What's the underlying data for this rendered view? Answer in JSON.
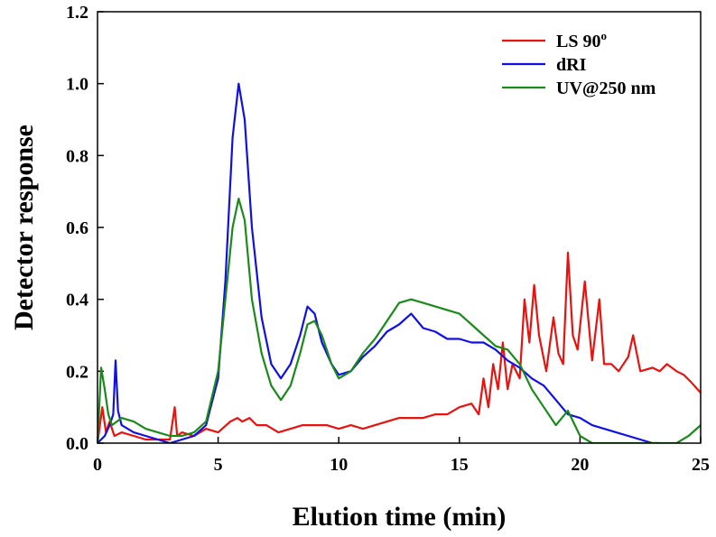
{
  "chart_data": {
    "type": "line",
    "title": "",
    "xlabel": "Elution time (min)",
    "ylabel": "Detector response",
    "xlim": [
      0,
      25
    ],
    "ylim": [
      0,
      1.2
    ],
    "xticks": [
      0,
      5,
      10,
      15,
      20,
      25
    ],
    "xtick_labels": [
      "0",
      "5",
      "10",
      "15",
      "20",
      "25"
    ],
    "yticks": [
      0.0,
      0.2,
      0.4,
      0.6,
      0.8,
      1.0,
      1.2
    ],
    "ytick_labels": [
      "0.0",
      "0.2",
      "0.4",
      "0.6",
      "0.8",
      "1.0",
      "1.2"
    ],
    "grid": false,
    "legend_position": "top-right",
    "series": [
      {
        "name": "LS 90",
        "name_sup": "o",
        "color": "#e8120f",
        "x": [
          0,
          0.2,
          0.35,
          0.5,
          0.7,
          1.0,
          1.5,
          2.0,
          2.5,
          3.0,
          3.2,
          3.3,
          3.5,
          4.0,
          4.5,
          5.0,
          5.5,
          5.8,
          6.0,
          6.3,
          6.6,
          7.0,
          7.5,
          8.0,
          8.5,
          9.0,
          9.5,
          10.0,
          10.5,
          11.0,
          11.5,
          12.0,
          12.5,
          13.0,
          13.5,
          14.0,
          14.5,
          15.0,
          15.5,
          15.8,
          16.0,
          16.2,
          16.4,
          16.6,
          16.8,
          17.0,
          17.2,
          17.5,
          17.7,
          17.9,
          18.1,
          18.3,
          18.6,
          18.9,
          19.1,
          19.3,
          19.5,
          19.7,
          19.9,
          20.2,
          20.5,
          20.8,
          21.0,
          21.3,
          21.6,
          22.0,
          22.2,
          22.5,
          23.0,
          23.3,
          23.6,
          24.0,
          24.3,
          24.6,
          25.0
        ],
        "y": [
          0.0,
          0.1,
          0.03,
          0.06,
          0.02,
          0.03,
          0.02,
          0.01,
          0.01,
          0.01,
          0.1,
          0.02,
          0.03,
          0.02,
          0.04,
          0.03,
          0.06,
          0.07,
          0.06,
          0.07,
          0.05,
          0.05,
          0.03,
          0.04,
          0.05,
          0.05,
          0.05,
          0.04,
          0.05,
          0.04,
          0.05,
          0.06,
          0.07,
          0.07,
          0.07,
          0.08,
          0.08,
          0.1,
          0.11,
          0.08,
          0.18,
          0.1,
          0.22,
          0.15,
          0.28,
          0.15,
          0.22,
          0.18,
          0.4,
          0.28,
          0.44,
          0.3,
          0.2,
          0.35,
          0.25,
          0.22,
          0.53,
          0.3,
          0.26,
          0.45,
          0.23,
          0.4,
          0.22,
          0.22,
          0.2,
          0.24,
          0.3,
          0.2,
          0.21,
          0.2,
          0.22,
          0.2,
          0.19,
          0.17,
          0.14
        ]
      },
      {
        "name": "dRI",
        "name_sup": "",
        "color": "#1010e6",
        "x": [
          0,
          0.3,
          0.5,
          0.65,
          0.75,
          0.85,
          1.0,
          1.5,
          2.0,
          2.5,
          3.0,
          3.5,
          4.0,
          4.5,
          5.0,
          5.3,
          5.6,
          5.85,
          6.1,
          6.4,
          6.8,
          7.2,
          7.6,
          8.0,
          8.4,
          8.7,
          9.0,
          9.3,
          9.7,
          10.0,
          10.5,
          11.0,
          11.5,
          12.0,
          12.5,
          13.0,
          13.5,
          14.0,
          14.5,
          15.0,
          15.5,
          16.0,
          16.5,
          17.0,
          17.5,
          18.0,
          18.5,
          19.0,
          19.5,
          20.0,
          20.5,
          21.0,
          21.5,
          22.0,
          22.5,
          23.0,
          23.3
        ],
        "y": [
          0.0,
          0.02,
          0.05,
          0.08,
          0.23,
          0.09,
          0.05,
          0.03,
          0.02,
          0.01,
          0.0,
          0.01,
          0.02,
          0.05,
          0.18,
          0.45,
          0.85,
          1.0,
          0.9,
          0.6,
          0.35,
          0.22,
          0.18,
          0.22,
          0.3,
          0.38,
          0.36,
          0.28,
          0.22,
          0.19,
          0.2,
          0.24,
          0.27,
          0.31,
          0.33,
          0.36,
          0.32,
          0.31,
          0.29,
          0.29,
          0.28,
          0.28,
          0.26,
          0.23,
          0.21,
          0.18,
          0.16,
          0.12,
          0.08,
          0.07,
          0.05,
          0.04,
          0.03,
          0.02,
          0.01,
          0.0,
          0.0
        ]
      },
      {
        "name": "UV@250 nm",
        "name_sup": "",
        "color": "#1a8a1a",
        "x": [
          0,
          0.15,
          0.3,
          0.45,
          0.6,
          1.0,
          1.5,
          2.0,
          2.5,
          3.0,
          3.5,
          4.0,
          4.5,
          5.0,
          5.3,
          5.6,
          5.85,
          6.1,
          6.4,
          6.8,
          7.2,
          7.6,
          8.0,
          8.4,
          8.7,
          9.0,
          9.3,
          9.7,
          10.0,
          10.5,
          11.0,
          11.5,
          12.0,
          12.5,
          13.0,
          13.5,
          14.0,
          14.5,
          15.0,
          15.5,
          16.0,
          16.5,
          17.0,
          17.5,
          18.0,
          18.5,
          19.0,
          19.5,
          20.0,
          20.5,
          21.0,
          22.0,
          23.0,
          24.0,
          24.5,
          25.0
        ],
        "y": [
          0.0,
          0.21,
          0.15,
          0.08,
          0.05,
          0.07,
          0.06,
          0.04,
          0.03,
          0.02,
          0.02,
          0.03,
          0.06,
          0.2,
          0.4,
          0.6,
          0.68,
          0.62,
          0.4,
          0.25,
          0.16,
          0.12,
          0.16,
          0.25,
          0.33,
          0.34,
          0.3,
          0.22,
          0.18,
          0.2,
          0.25,
          0.29,
          0.34,
          0.39,
          0.4,
          0.39,
          0.38,
          0.37,
          0.36,
          0.33,
          0.3,
          0.27,
          0.26,
          0.22,
          0.15,
          0.1,
          0.05,
          0.09,
          0.02,
          0.0,
          0.0,
          0.0,
          0.0,
          0.0,
          0.02,
          0.05
        ]
      }
    ]
  }
}
